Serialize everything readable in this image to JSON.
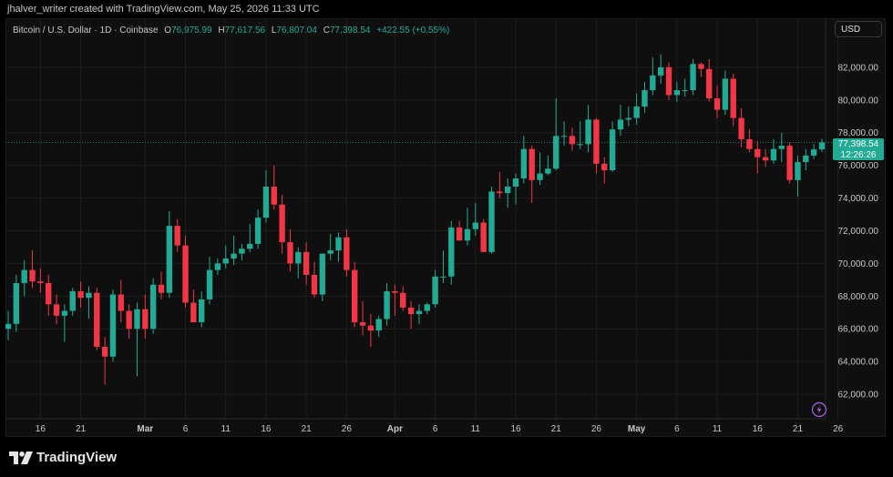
{
  "header": {
    "attribution": "jhalver_writer created with TradingView.com, May 25, 2026 11:33 UTC"
  },
  "legend": {
    "symbol": "Bitcoin / U.S. Dollar · 1D · Coinbase",
    "open_label": "O",
    "open": "76,975.99",
    "high_label": "H",
    "high": "77,617.56",
    "low_label": "L",
    "low": "76,807.04",
    "close_label": "C",
    "close": "77,398.54",
    "change": "+422.55 (+0.55%)"
  },
  "toolbar": {
    "currency": "USD"
  },
  "price_badge": {
    "price": "77,398.54",
    "countdown": "12:26:26"
  },
  "brand": {
    "name": "TradingView",
    "logo": "tradingview-logo"
  },
  "icons": {
    "snapshot": "lightning-icon"
  },
  "colors": {
    "up": "#22ab94",
    "down": "#f23645",
    "panel": "#0f0f0f",
    "grid": "#1e1e1e"
  },
  "chart_data": {
    "type": "candlestick",
    "ylim": [
      60500,
      84000
    ],
    "y_ticks": [
      62000,
      64000,
      66000,
      68000,
      70000,
      72000,
      74000,
      76000,
      78000,
      80000,
      82000
    ],
    "y_tick_labels": [
      "62,000.00",
      "64,000.00",
      "66,000.00",
      "68,000.00",
      "70,000.00",
      "72,000.00",
      "74,000.00",
      "76,000.00",
      "78,000.00",
      "80,000.00",
      "82,000.00"
    ],
    "x_labels": [
      {
        "index": 4,
        "text": "16"
      },
      {
        "index": 9,
        "text": "21"
      },
      {
        "index": 17,
        "text": "Mar"
      },
      {
        "index": 22,
        "text": "6"
      },
      {
        "index": 27,
        "text": "11"
      },
      {
        "index": 32,
        "text": "16"
      },
      {
        "index": 37,
        "text": "21"
      },
      {
        "index": 42,
        "text": "26"
      },
      {
        "index": 48,
        "text": "Apr"
      },
      {
        "index": 53,
        "text": "6"
      },
      {
        "index": 58,
        "text": "11"
      },
      {
        "index": 63,
        "text": "16"
      },
      {
        "index": 68,
        "text": "21"
      },
      {
        "index": 73,
        "text": "26"
      },
      {
        "index": 78,
        "text": "May"
      },
      {
        "index": 83,
        "text": "6"
      },
      {
        "index": 88,
        "text": "11"
      },
      {
        "index": 93,
        "text": "16"
      },
      {
        "index": 98,
        "text": "21"
      },
      {
        "index": 103,
        "text": "26"
      }
    ],
    "last_price": 77398.54,
    "candles": [
      {
        "o": 66000,
        "h": 67100,
        "l": 65300,
        "c": 66300
      },
      {
        "o": 66300,
        "h": 69300,
        "l": 65800,
        "c": 68800
      },
      {
        "o": 68800,
        "h": 70200,
        "l": 68000,
        "c": 69600
      },
      {
        "o": 69600,
        "h": 70800,
        "l": 68500,
        "c": 68900
      },
      {
        "o": 68900,
        "h": 69700,
        "l": 68200,
        "c": 68800
      },
      {
        "o": 68800,
        "h": 69300,
        "l": 66800,
        "c": 67500
      },
      {
        "o": 67500,
        "h": 68100,
        "l": 66300,
        "c": 66800
      },
      {
        "o": 66800,
        "h": 67500,
        "l": 65200,
        "c": 67100
      },
      {
        "o": 67100,
        "h": 68500,
        "l": 66800,
        "c": 68300
      },
      {
        "o": 68300,
        "h": 68900,
        "l": 67300,
        "c": 67900
      },
      {
        "o": 67900,
        "h": 68600,
        "l": 66600,
        "c": 68200
      },
      {
        "o": 68200,
        "h": 68500,
        "l": 64700,
        "c": 64900
      },
      {
        "o": 64900,
        "h": 65500,
        "l": 62600,
        "c": 64300
      },
      {
        "o": 64300,
        "h": 68400,
        "l": 64000,
        "c": 68100
      },
      {
        "o": 68100,
        "h": 69000,
        "l": 66400,
        "c": 67100
      },
      {
        "o": 67100,
        "h": 67500,
        "l": 65400,
        "c": 66000
      },
      {
        "o": 66000,
        "h": 67600,
        "l": 63100,
        "c": 67200
      },
      {
        "o": 67200,
        "h": 68100,
        "l": 65400,
        "c": 66000
      },
      {
        "o": 66000,
        "h": 69100,
        "l": 65700,
        "c": 68700
      },
      {
        "o": 68700,
        "h": 69500,
        "l": 67800,
        "c": 68200
      },
      {
        "o": 68200,
        "h": 73200,
        "l": 67900,
        "c": 72300
      },
      {
        "o": 72300,
        "h": 72700,
        "l": 70700,
        "c": 71100
      },
      {
        "o": 71100,
        "h": 71700,
        "l": 67300,
        "c": 67600
      },
      {
        "o": 67600,
        "h": 68400,
        "l": 66400,
        "c": 66400
      },
      {
        "o": 66400,
        "h": 68300,
        "l": 66100,
        "c": 67800
      },
      {
        "o": 67800,
        "h": 70400,
        "l": 67500,
        "c": 69600
      },
      {
        "o": 69600,
        "h": 70300,
        "l": 69300,
        "c": 70000
      },
      {
        "o": 70000,
        "h": 71100,
        "l": 69700,
        "c": 70300
      },
      {
        "o": 70300,
        "h": 71700,
        "l": 69900,
        "c": 70600
      },
      {
        "o": 70600,
        "h": 71200,
        "l": 70200,
        "c": 70900
      },
      {
        "o": 70900,
        "h": 72400,
        "l": 70700,
        "c": 71200
      },
      {
        "o": 71200,
        "h": 73300,
        "l": 70900,
        "c": 72800
      },
      {
        "o": 72800,
        "h": 75700,
        "l": 72500,
        "c": 74700
      },
      {
        "o": 74700,
        "h": 76000,
        "l": 73300,
        "c": 73600
      },
      {
        "o": 73600,
        "h": 74200,
        "l": 70600,
        "c": 71300
      },
      {
        "o": 71300,
        "h": 72100,
        "l": 69500,
        "c": 70000
      },
      {
        "o": 70000,
        "h": 71000,
        "l": 69100,
        "c": 70700
      },
      {
        "o": 70700,
        "h": 71300,
        "l": 68700,
        "c": 69300
      },
      {
        "o": 69300,
        "h": 70100,
        "l": 67900,
        "c": 68100
      },
      {
        "o": 68100,
        "h": 70600,
        "l": 67700,
        "c": 70600
      },
      {
        "o": 70600,
        "h": 71800,
        "l": 70200,
        "c": 70800
      },
      {
        "o": 70800,
        "h": 71900,
        "l": 70100,
        "c": 71600
      },
      {
        "o": 71600,
        "h": 72100,
        "l": 69200,
        "c": 69600
      },
      {
        "o": 69600,
        "h": 70100,
        "l": 66100,
        "c": 66400
      },
      {
        "o": 66400,
        "h": 67700,
        "l": 65600,
        "c": 66200
      },
      {
        "o": 66200,
        "h": 66900,
        "l": 64900,
        "c": 65900
      },
      {
        "o": 65900,
        "h": 66800,
        "l": 65500,
        "c": 66600
      },
      {
        "o": 66600,
        "h": 68800,
        "l": 66200,
        "c": 68300
      },
      {
        "o": 68300,
        "h": 68700,
        "l": 66800,
        "c": 68200
      },
      {
        "o": 68200,
        "h": 68600,
        "l": 67100,
        "c": 67300
      },
      {
        "o": 67300,
        "h": 67700,
        "l": 66000,
        "c": 66900
      },
      {
        "o": 66900,
        "h": 67500,
        "l": 66300,
        "c": 67100
      },
      {
        "o": 67100,
        "h": 67600,
        "l": 66900,
        "c": 67500
      },
      {
        "o": 67500,
        "h": 69600,
        "l": 67300,
        "c": 69200
      },
      {
        "o": 69200,
        "h": 70800,
        "l": 68800,
        "c": 69200
      },
      {
        "o": 69200,
        "h": 72600,
        "l": 68700,
        "c": 72200
      },
      {
        "o": 72200,
        "h": 72600,
        "l": 71500,
        "c": 71400
      },
      {
        "o": 71400,
        "h": 73400,
        "l": 71100,
        "c": 72100
      },
      {
        "o": 72100,
        "h": 73700,
        "l": 71700,
        "c": 72500
      },
      {
        "o": 72500,
        "h": 72700,
        "l": 70700,
        "c": 70700
      },
      {
        "o": 70700,
        "h": 74700,
        "l": 70600,
        "c": 74400
      },
      {
        "o": 74400,
        "h": 75600,
        "l": 74000,
        "c": 74300
      },
      {
        "o": 74300,
        "h": 75200,
        "l": 73400,
        "c": 74700
      },
      {
        "o": 74700,
        "h": 75500,
        "l": 73600,
        "c": 75200
      },
      {
        "o": 75200,
        "h": 77800,
        "l": 74900,
        "c": 77000
      },
      {
        "o": 77000,
        "h": 77200,
        "l": 73700,
        "c": 75100
      },
      {
        "o": 75100,
        "h": 76800,
        "l": 74800,
        "c": 75500
      },
      {
        "o": 75500,
        "h": 76600,
        "l": 75400,
        "c": 75800
      },
      {
        "o": 75800,
        "h": 80100,
        "l": 75700,
        "c": 77800
      },
      {
        "o": 77800,
        "h": 78700,
        "l": 77200,
        "c": 77800
      },
      {
        "o": 77800,
        "h": 78300,
        "l": 76900,
        "c": 77300
      },
      {
        "o": 77300,
        "h": 78700,
        "l": 77000,
        "c": 77300
      },
      {
        "o": 77300,
        "h": 79700,
        "l": 76800,
        "c": 78800
      },
      {
        "o": 78800,
        "h": 78900,
        "l": 75500,
        "c": 76100
      },
      {
        "o": 76100,
        "h": 76500,
        "l": 74900,
        "c": 75700
      },
      {
        "o": 75700,
        "h": 78700,
        "l": 75600,
        "c": 78200
      },
      {
        "o": 78200,
        "h": 79700,
        "l": 77800,
        "c": 78800
      },
      {
        "o": 78800,
        "h": 79600,
        "l": 78400,
        "c": 78900
      },
      {
        "o": 78900,
        "h": 80400,
        "l": 78500,
        "c": 79600
      },
      {
        "o": 79600,
        "h": 81100,
        "l": 79200,
        "c": 80600
      },
      {
        "o": 80600,
        "h": 82600,
        "l": 80300,
        "c": 81500
      },
      {
        "o": 81500,
        "h": 82800,
        "l": 81000,
        "c": 82000
      },
      {
        "o": 82000,
        "h": 82300,
        "l": 80000,
        "c": 80300
      },
      {
        "o": 80300,
        "h": 81100,
        "l": 79900,
        "c": 80600
      },
      {
        "o": 80600,
        "h": 81300,
        "l": 80200,
        "c": 80600
      },
      {
        "o": 80600,
        "h": 82500,
        "l": 80300,
        "c": 82200
      },
      {
        "o": 82200,
        "h": 82300,
        "l": 81400,
        "c": 81900
      },
      {
        "o": 81900,
        "h": 82500,
        "l": 79900,
        "c": 80100
      },
      {
        "o": 80100,
        "h": 80900,
        "l": 78900,
        "c": 79400
      },
      {
        "o": 79400,
        "h": 81800,
        "l": 79100,
        "c": 81300
      },
      {
        "o": 81300,
        "h": 81600,
        "l": 78400,
        "c": 78900
      },
      {
        "o": 78900,
        "h": 79500,
        "l": 77100,
        "c": 77600
      },
      {
        "o": 77600,
        "h": 78200,
        "l": 76800,
        "c": 77000
      },
      {
        "o": 77000,
        "h": 77500,
        "l": 75500,
        "c": 76500
      },
      {
        "o": 76500,
        "h": 77000,
        "l": 75900,
        "c": 76300
      },
      {
        "o": 76300,
        "h": 77600,
        "l": 76100,
        "c": 77000
      },
      {
        "o": 77000,
        "h": 78000,
        "l": 76200,
        "c": 77200
      },
      {
        "o": 77200,
        "h": 77400,
        "l": 74900,
        "c": 75100
      },
      {
        "o": 75100,
        "h": 76600,
        "l": 74100,
        "c": 76200
      },
      {
        "o": 76200,
        "h": 77000,
        "l": 75700,
        "c": 76600
      },
      {
        "o": 76600,
        "h": 77300,
        "l": 76400,
        "c": 76976
      },
      {
        "o": 76976,
        "h": 77618,
        "l": 76807,
        "c": 77399
      }
    ]
  }
}
